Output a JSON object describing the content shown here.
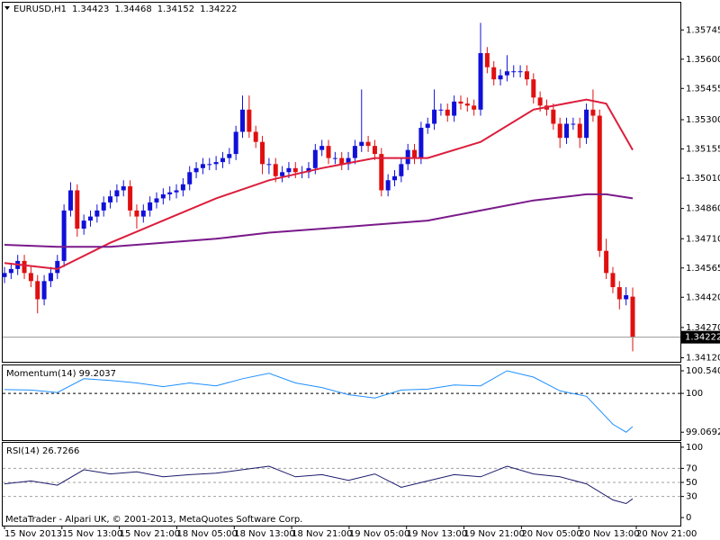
{
  "chart_data": [
    {
      "type": "candlestick",
      "title": "EURUSD,H1",
      "open": [
        1.3452,
        1.3454,
        1.3456,
        1.346,
        1.3454,
        1.345,
        1.3441,
        1.345,
        1.3454,
        1.346,
        1.3485,
        1.3495,
        1.3476,
        1.348,
        1.3482,
        1.3485,
        1.3489,
        1.3492,
        1.3495,
        1.3497,
        1.3485,
        1.3482,
        1.3485,
        1.3489,
        1.3491,
        1.3493,
        1.3494,
        1.3495,
        1.3498,
        1.3504,
        1.3506,
        1.3508,
        1.3508,
        1.3509,
        1.3511,
        1.3513,
        1.3524,
        1.3535,
        1.3524,
        1.3519,
        1.3508,
        1.3508,
        1.3502,
        1.3504,
        1.3506,
        1.3504,
        1.3504,
        1.3506,
        1.3515,
        1.3517,
        1.3511,
        1.3511,
        1.3508,
        1.3511,
        1.3517,
        1.3519,
        1.3517,
        1.3513,
        1.3495,
        1.35,
        1.3502,
        1.3508,
        1.3515,
        1.3511,
        1.3526,
        1.3528,
        1.3535,
        1.3535,
        1.3532,
        1.3539,
        1.3538,
        1.3537,
        1.3535,
        1.3563,
        1.3556,
        1.355,
        1.3552,
        1.3554,
        1.3554,
        1.3554,
        1.355,
        1.3541,
        1.3537,
        1.3535,
        1.3528,
        1.3521,
        1.3528,
        1.3528,
        1.3521,
        1.3535,
        1.3532,
        1.3465,
        1.3454,
        1.3447,
        1.3441,
        1.34423
      ],
      "high": [
        1.3457,
        1.3459,
        1.3463,
        1.3463,
        1.3457,
        1.3453,
        1.3453,
        1.3457,
        1.3463,
        1.3488,
        1.3499,
        1.3498,
        1.3483,
        1.3485,
        1.3488,
        1.3492,
        1.3495,
        1.3498,
        1.35,
        1.35,
        1.3488,
        1.3488,
        1.3492,
        1.3494,
        1.3496,
        1.3497,
        1.3498,
        1.3501,
        1.3507,
        1.3509,
        1.3511,
        1.3511,
        1.3512,
        1.3514,
        1.3516,
        1.3527,
        1.3542,
        1.3542,
        1.3527,
        1.3522,
        1.3511,
        1.3511,
        1.3507,
        1.3509,
        1.3509,
        1.3507,
        1.3509,
        1.3518,
        1.352,
        1.352,
        1.3514,
        1.3514,
        1.3514,
        1.352,
        1.3545,
        1.3522,
        1.352,
        1.3516,
        1.3503,
        1.3505,
        1.3511,
        1.3518,
        1.3518,
        1.3529,
        1.3531,
        1.3545,
        1.3538,
        1.3538,
        1.3542,
        1.3542,
        1.3541,
        1.354,
        1.3578,
        1.3566,
        1.3559,
        1.3555,
        1.3562,
        1.3557,
        1.3557,
        1.3557,
        1.3553,
        1.3544,
        1.354,
        1.3538,
        1.3531,
        1.3531,
        1.3531,
        1.3531,
        1.3538,
        1.3545,
        1.3535,
        1.3471,
        1.3457,
        1.345,
        1.3447,
        1.34468
      ],
      "low": [
        1.3449,
        1.3451,
        1.3453,
        1.3451,
        1.3447,
        1.3434,
        1.3438,
        1.3447,
        1.3451,
        1.3457,
        1.3482,
        1.3472,
        1.3473,
        1.3477,
        1.3479,
        1.3482,
        1.3486,
        1.3489,
        1.3492,
        1.3482,
        1.3476,
        1.3479,
        1.3482,
        1.3486,
        1.3488,
        1.349,
        1.3491,
        1.3492,
        1.3495,
        1.3501,
        1.3503,
        1.3505,
        1.3505,
        1.3506,
        1.3508,
        1.351,
        1.3521,
        1.3521,
        1.3516,
        1.3503,
        1.3503,
        1.3499,
        1.3499,
        1.3501,
        1.3501,
        1.3501,
        1.3501,
        1.3503,
        1.3512,
        1.3508,
        1.3508,
        1.3505,
        1.3505,
        1.3508,
        1.3514,
        1.3514,
        1.351,
        1.3492,
        1.3492,
        1.3497,
        1.3499,
        1.3505,
        1.3508,
        1.3508,
        1.3523,
        1.3525,
        1.3532,
        1.3529,
        1.3529,
        1.3535,
        1.3534,
        1.3532,
        1.3532,
        1.3553,
        1.3547,
        1.3547,
        1.3549,
        1.3551,
        1.3551,
        1.3547,
        1.3538,
        1.3534,
        1.3532,
        1.3525,
        1.3516,
        1.3518,
        1.3525,
        1.3516,
        1.3518,
        1.3529,
        1.3462,
        1.3451,
        1.3444,
        1.3436,
        1.3438,
        1.34152
      ],
      "close": [
        1.3454,
        1.3456,
        1.346,
        1.3454,
        1.345,
        1.3441,
        1.345,
        1.3454,
        1.346,
        1.3485,
        1.3495,
        1.3476,
        1.348,
        1.3482,
        1.3485,
        1.3489,
        1.3492,
        1.3495,
        1.3497,
        1.3485,
        1.3482,
        1.3485,
        1.3489,
        1.3491,
        1.3493,
        1.3494,
        1.3495,
        1.3498,
        1.3504,
        1.3506,
        1.3508,
        1.3508,
        1.3509,
        1.3511,
        1.3513,
        1.3524,
        1.3535,
        1.3524,
        1.3519,
        1.3508,
        1.3508,
        1.3502,
        1.3504,
        1.3506,
        1.3504,
        1.3504,
        1.3506,
        1.3515,
        1.3517,
        1.3511,
        1.3511,
        1.3508,
        1.3511,
        1.3517,
        1.3519,
        1.3517,
        1.3513,
        1.3495,
        1.35,
        1.3502,
        1.3508,
        1.3515,
        1.3511,
        1.3526,
        1.3528,
        1.3535,
        1.3535,
        1.3532,
        1.3539,
        1.3538,
        1.3537,
        1.3535,
        1.3563,
        1.3556,
        1.355,
        1.3552,
        1.3554,
        1.3554,
        1.3554,
        1.355,
        1.3541,
        1.3537,
        1.3535,
        1.3528,
        1.3521,
        1.3528,
        1.3528,
        1.3521,
        1.3535,
        1.3532,
        1.3465,
        1.3454,
        1.3447,
        1.3441,
        1.3443,
        1.34222
      ],
      "up_color": "#1010d8",
      "down_color": "#e01010",
      "overlays": [
        {
          "x": [
            0,
            8,
            16,
            24,
            32,
            40,
            48,
            56,
            64,
            72,
            80,
            88,
            91,
            95
          ],
          "values": [
            1.3459,
            1.3456,
            1.3469,
            1.348,
            1.3491,
            1.35,
            1.3506,
            1.3511,
            1.3511,
            1.3519,
            1.3535,
            1.354,
            1.3538,
            1.3515
          ],
          "color": "#dc1e3c"
        },
        {
          "x": [
            0,
            8,
            16,
            24,
            32,
            40,
            48,
            56,
            64,
            72,
            80,
            88,
            91,
            95
          ],
          "values": [
            1.3468,
            1.3467,
            1.3467,
            1.3469,
            1.3471,
            1.3474,
            1.3476,
            1.3478,
            1.348,
            1.3485,
            1.349,
            1.3493,
            1.3493,
            1.3491
          ],
          "color": "#7a1a8a"
        }
      ],
      "ylim": [
        1.341,
        1.3588
      ],
      "yticks": [
        1.35745,
        {
          "value": 1.356,
          "label": "1.35600"
        },
        1.35455,
        {
          "value": 1.353,
          "label": "1.35300"
        },
        1.35155,
        {
          "value": 1.3501,
          "label": "1.35010"
        },
        {
          "value": 1.3486,
          "label": "1.34860"
        },
        {
          "value": 1.3471,
          "label": "1.34710"
        },
        1.34565,
        {
          "value": 1.3442,
          "label": "1.34420"
        },
        {
          "value": 1.3427,
          "label": "1.34270"
        },
        {
          "value": 1.3412,
          "label": "1.34120"
        }
      ],
      "x_tick_labels": [
        "15 Nov 2013",
        "15 Nov 13:00",
        "15 Nov 21:00",
        "18 Nov 05:00",
        "18 Nov 13:00",
        "18 Nov 21:00",
        "19 Nov 05:00",
        "19 Nov 13:00",
        "19 Nov 21:00",
        "20 Nov 05:00",
        "20 Nov 13:00",
        "20 Nov 21:00"
      ]
    },
    {
      "type": "line",
      "title": "Momentum(14) 99.2037",
      "color": "#1e8fff",
      "x": [
        0,
        4,
        8,
        12,
        16,
        20,
        24,
        28,
        32,
        36,
        40,
        44,
        48,
        52,
        56,
        60,
        64,
        68,
        72,
        76,
        80,
        84,
        88,
        92,
        94,
        95
      ],
      "values": [
        100.09,
        100.08,
        100.02,
        100.35,
        100.31,
        100.25,
        100.16,
        100.25,
        100.18,
        100.35,
        100.48,
        100.25,
        100.14,
        99.97,
        99.89,
        100.08,
        100.1,
        100.2,
        100.18,
        100.54,
        100.39,
        100.06,
        99.93,
        99.26,
        99.07,
        99.2037
      ],
      "ylim": [
        98.88,
        100.67
      ],
      "yticks": [
        100.5404,
        100,
        99.0692
      ]
    },
    {
      "type": "line",
      "title": "RSI(14) 26.7266",
      "color": "#1a1a6a",
      "x": [
        0,
        4,
        8,
        12,
        16,
        20,
        24,
        28,
        32,
        36,
        40,
        44,
        48,
        52,
        56,
        60,
        64,
        68,
        72,
        76,
        80,
        84,
        88,
        92,
        94,
        95
      ],
      "values": [
        48,
        52,
        46,
        68,
        62,
        65,
        58,
        61,
        63,
        68,
        73,
        58,
        61,
        53,
        62,
        43,
        52,
        61,
        58,
        73,
        62,
        58,
        48,
        25,
        20,
        26.7266
      ],
      "ylim": [
        -11.4,
        106.3
      ],
      "yticks": [
        100,
        70,
        50,
        30,
        0
      ]
    }
  ],
  "footer": "MetaTrader - Alpari UK, © 2001-2013, MetaQuotes Software Corp."
}
